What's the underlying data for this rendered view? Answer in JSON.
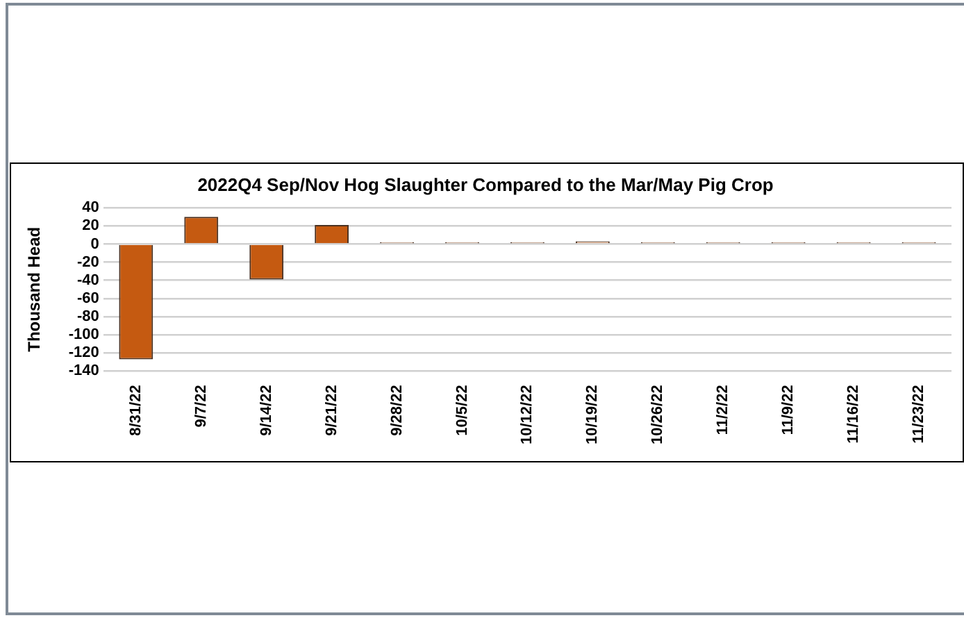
{
  "chart_data": {
    "type": "bar",
    "title": "2022Q4 Sep/Nov Hog Slaughter Compared to the Mar/May Pig Crop",
    "ylabel": "Thousand Head",
    "categories": [
      "8/31/22",
      "9/7/22",
      "9/14/22",
      "9/21/22",
      "9/28/22",
      "10/5/22",
      "10/12/22",
      "10/19/22",
      "10/26/22",
      "11/2/22",
      "11/9/22",
      "11/16/22",
      "11/23/22"
    ],
    "values": [
      -127,
      30,
      -39,
      21,
      2,
      2,
      2,
      3,
      2,
      2,
      2,
      2,
      2
    ],
    "colors": [
      "#c55a11",
      "#c55a11",
      "#c55a11",
      "#c55a11",
      "#f8cbad",
      "#f8cbad",
      "#f8cbad",
      "#f8cbad",
      "#f8cbad",
      "#f8cbad",
      "#f8cbad",
      "#f8cbad",
      "#f8cbad"
    ],
    "ylim": [
      -140,
      40
    ],
    "yticks": [
      -140,
      -120,
      -100,
      -80,
      -60,
      -40,
      -20,
      0,
      20,
      40
    ],
    "grid": "y"
  }
}
